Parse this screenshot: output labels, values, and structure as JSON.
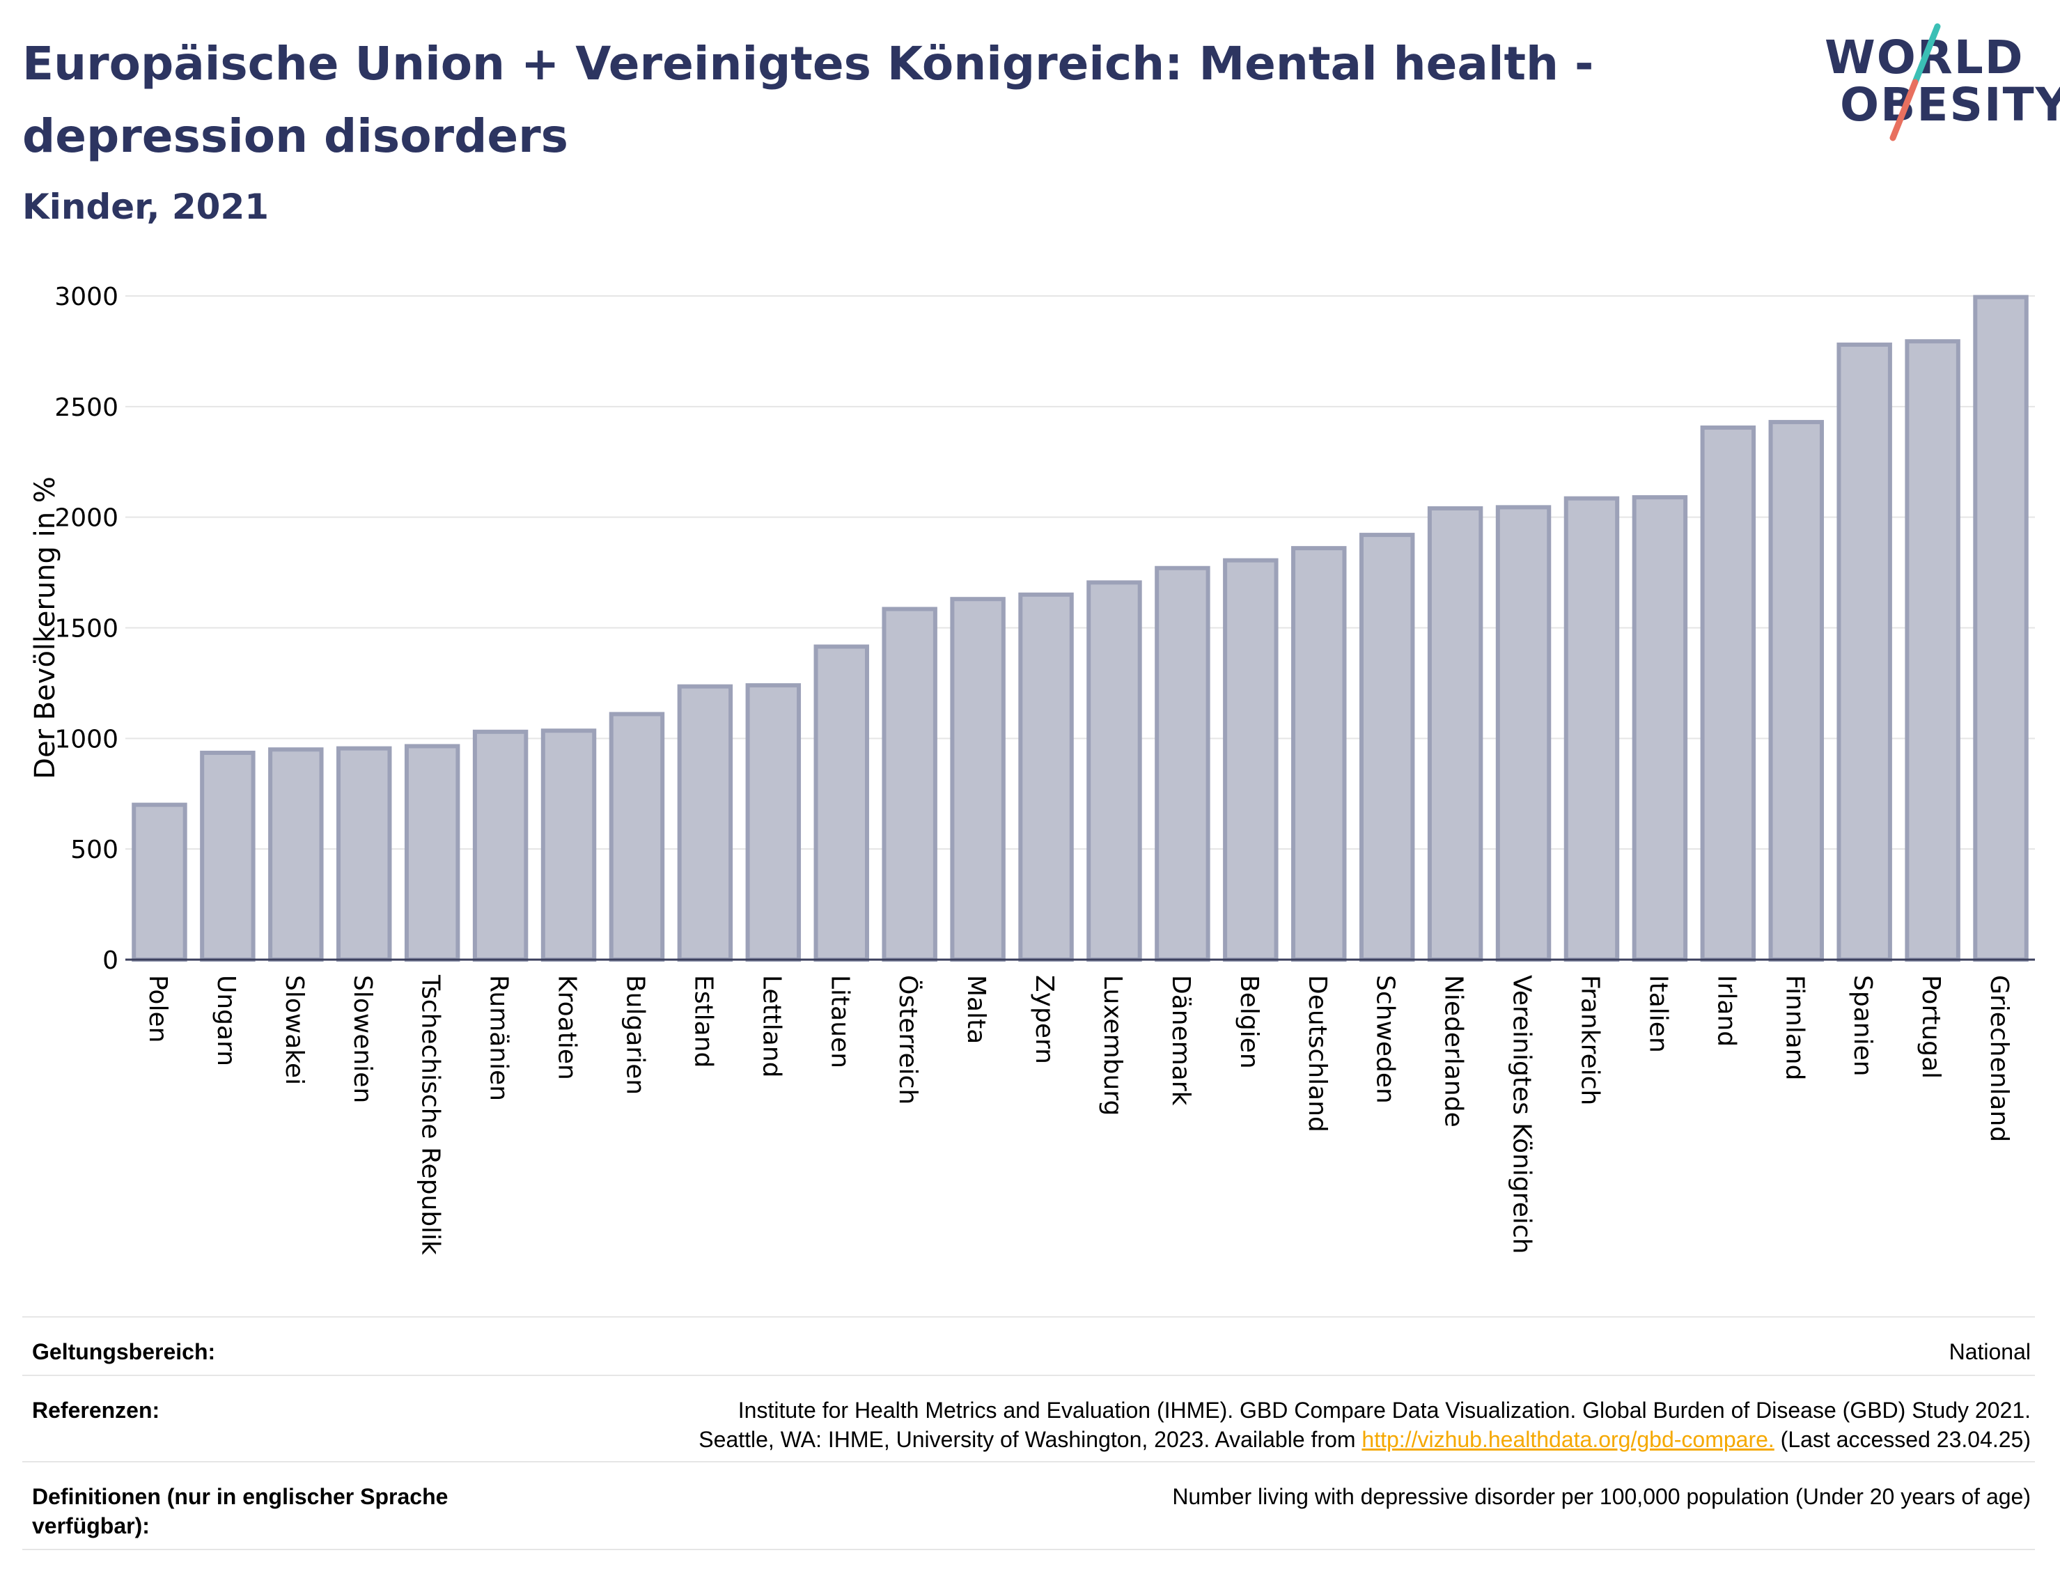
{
  "header": {
    "title": "Europäische Union + Vereinigtes Königreich: Mental health - depression disorders",
    "subtitle": "Kinder, 2021"
  },
  "logo": {
    "line1": "WORLD",
    "line2": "OBESITY",
    "accent_teal": "#3bbfb5",
    "accent_coral": "#e8705f"
  },
  "chart_data": {
    "type": "bar",
    "title": "",
    "xlabel": "",
    "ylabel": "Der Bevölkerung in %",
    "ylim": [
      0,
      3000
    ],
    "yticks": [
      0,
      500,
      1000,
      1500,
      2000,
      2500,
      3000
    ],
    "grid": true,
    "bar_fill": "#bec1cf",
    "bar_stroke": "#9ca1b8",
    "categories": [
      "Polen",
      "Ungarn",
      "Slowakei",
      "Slowenien",
      "Tschechische Republik",
      "Rumänien",
      "Kroatien",
      "Bulgarien",
      "Estland",
      "Lettland",
      "Litauen",
      "Österreich",
      "Malta",
      "Zypern",
      "Luxemburg",
      "Dänemark",
      "Belgien",
      "Deutschland",
      "Schweden",
      "Niederlande",
      "Vereinigtes Königreich",
      "Frankreich",
      "Italien",
      "Irland",
      "Finnland",
      "Spanien",
      "Portugal",
      "Griechenland"
    ],
    "values": [
      700,
      935,
      950,
      955,
      965,
      1030,
      1035,
      1110,
      1235,
      1240,
      1415,
      1585,
      1630,
      1650,
      1705,
      1770,
      1805,
      1860,
      1920,
      2040,
      2045,
      2085,
      2090,
      2405,
      2430,
      2780,
      2795,
      2995
    ]
  },
  "footer": {
    "scope_label": "Geltungsbereich:",
    "scope_value": "National",
    "references_label": "Referenzen:",
    "references_line1": "Institute for Health Metrics and Evaluation (IHME). GBD Compare Data Visualization. Global Burden of Disease (GBD) Study 2021.",
    "references_line2_pre": "Seattle, WA: IHME, University of Washington, 2023. Available from ",
    "references_link": "http://vizhub.healthdata.org/gbd-compare.",
    "references_line2_post": " (Last accessed 23.04.25)",
    "definitions_label": "Definitionen (nur in englischer Sprache verfügbar):",
    "definitions_value": "Number living with depressive disorder per 100,000 population (Under 20 years of age)"
  }
}
